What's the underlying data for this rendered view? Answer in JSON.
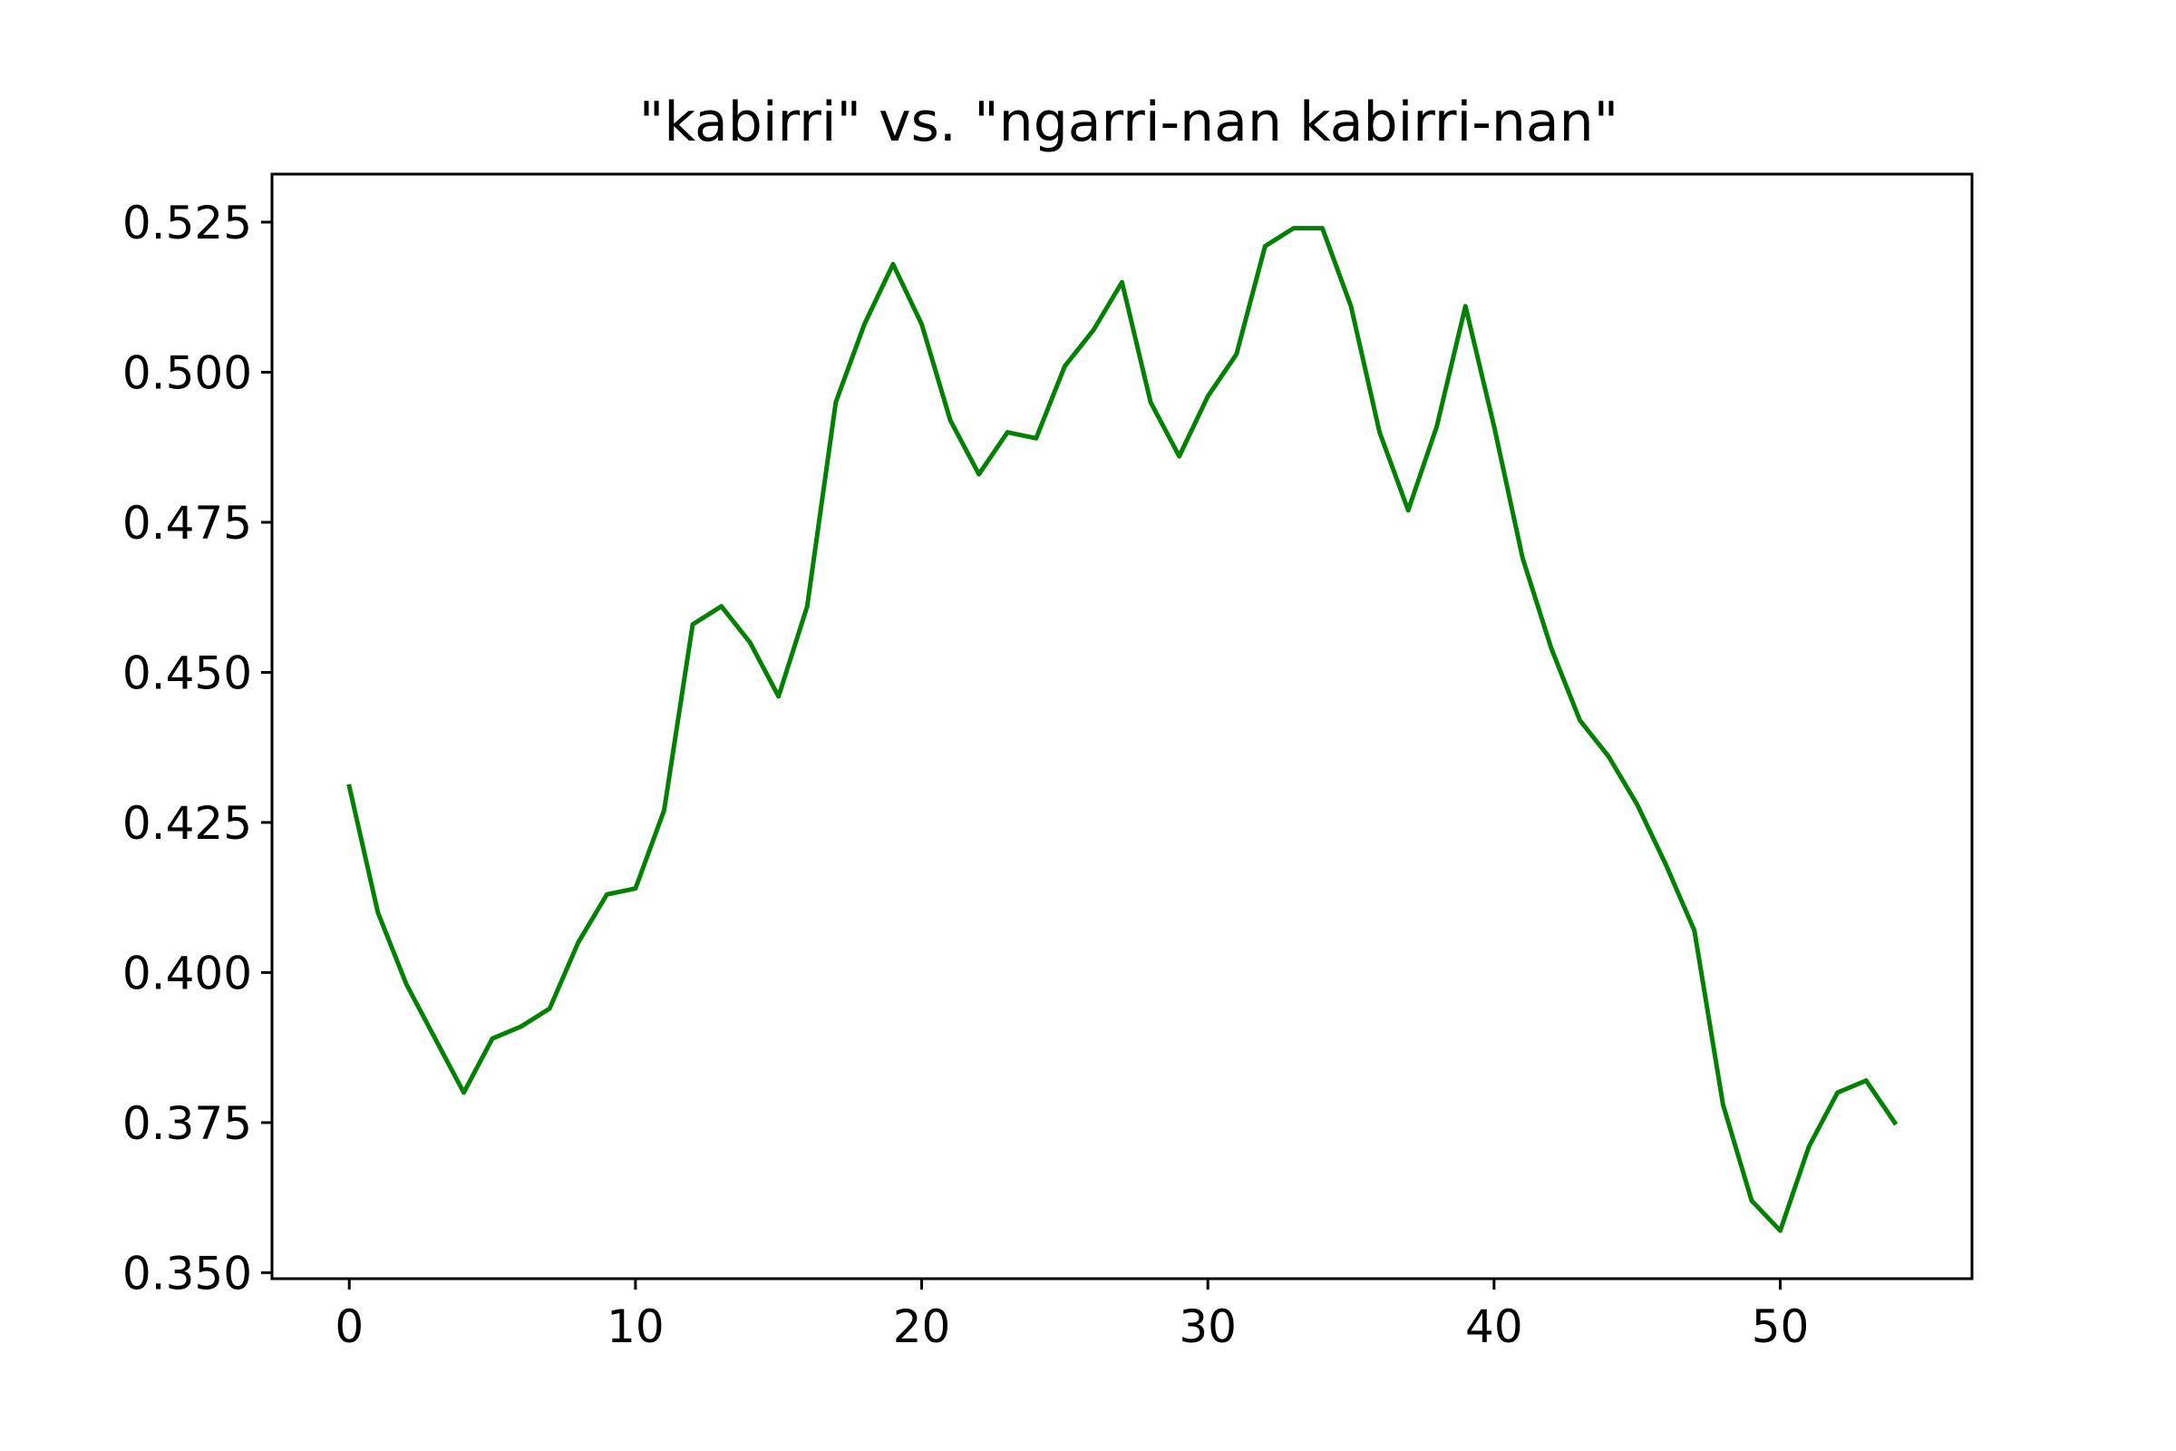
{
  "chart_data": {
    "type": "line",
    "title": "\"kabirri\" vs. \"ngarri-nan kabirri-nan\"",
    "xlabel": "",
    "ylabel": "",
    "xlim": [
      -2.7,
      56.7
    ],
    "ylim": [
      0.349,
      0.533
    ],
    "x_ticks": [
      0,
      10,
      20,
      30,
      40,
      50
    ],
    "y_ticks": [
      0.35,
      0.375,
      0.4,
      0.425,
      0.45,
      0.475,
      0.5,
      0.525
    ],
    "x_tick_labels": [
      "0",
      "10",
      "20",
      "30",
      "40",
      "50"
    ],
    "y_tick_labels": [
      "0.350",
      "0.375",
      "0.400",
      "0.425",
      "0.450",
      "0.475",
      "0.500",
      "0.525"
    ],
    "grid": false,
    "legend": "none",
    "series": [
      {
        "color": "#008000",
        "x": [
          0,
          1,
          2,
          3,
          4,
          5,
          6,
          7,
          8,
          9,
          10,
          11,
          12,
          13,
          14,
          15,
          16,
          17,
          18,
          19,
          20,
          21,
          22,
          23,
          24,
          25,
          26,
          27,
          28,
          29,
          30,
          31,
          32,
          33,
          34,
          35,
          36,
          37,
          38,
          39,
          40,
          41,
          42,
          43,
          44,
          45,
          46,
          47,
          48,
          49,
          50,
          51,
          52,
          53,
          54
        ],
        "values": [
          0.431,
          0.41,
          0.398,
          0.389,
          0.38,
          0.389,
          0.391,
          0.394,
          0.405,
          0.413,
          0.414,
          0.427,
          0.458,
          0.461,
          0.455,
          0.446,
          0.461,
          0.495,
          0.508,
          0.518,
          0.508,
          0.492,
          0.483,
          0.49,
          0.489,
          0.501,
          0.507,
          0.515,
          0.495,
          0.486,
          0.496,
          0.503,
          0.521,
          0.524,
          0.524,
          0.511,
          0.49,
          0.477,
          0.491,
          0.511,
          0.491,
          0.469,
          0.454,
          0.442,
          0.436,
          0.428,
          0.418,
          0.407,
          0.378,
          0.362,
          0.357,
          0.371,
          0.38,
          0.382,
          0.375
        ]
      }
    ]
  }
}
